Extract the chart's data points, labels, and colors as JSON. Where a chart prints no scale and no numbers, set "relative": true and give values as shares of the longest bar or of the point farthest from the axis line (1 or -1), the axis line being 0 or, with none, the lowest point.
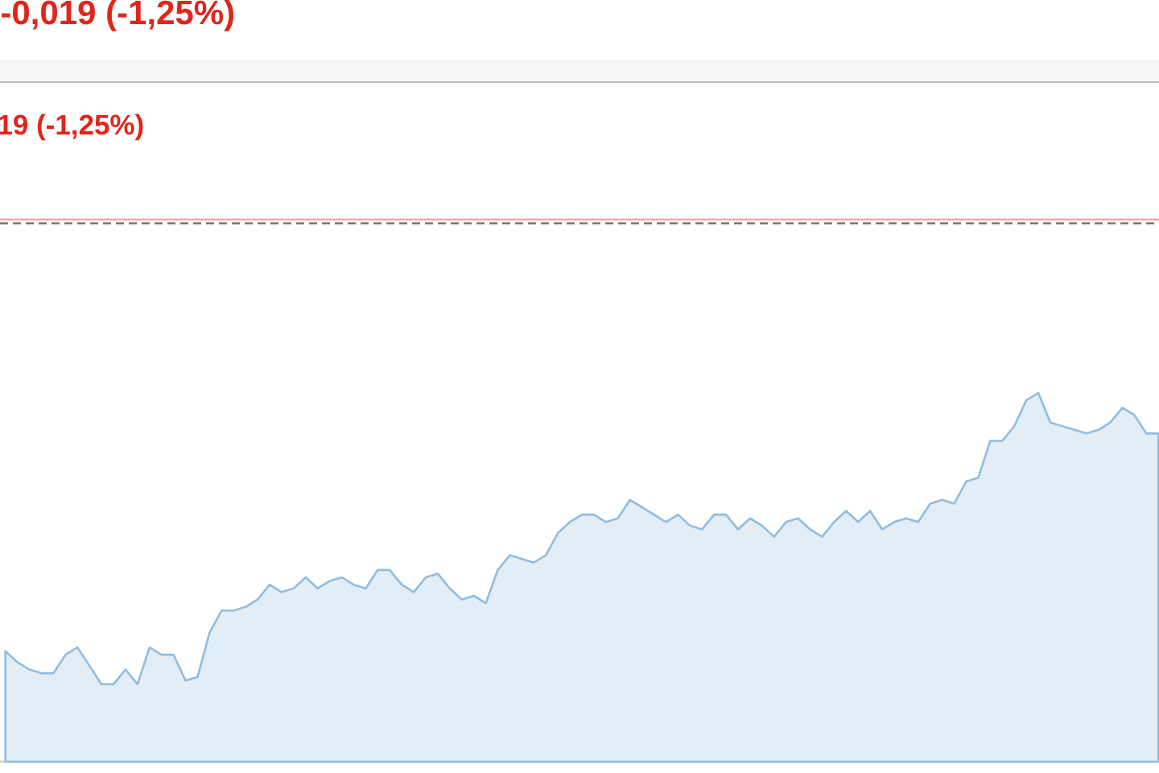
{
  "chart_data": {
    "type": "area",
    "relative": true,
    "annotations": [
      "-0,019 (-1,25%)",
      "19 (-1,25%)"
    ],
    "categories": [
      null,
      null,
      null,
      null,
      null,
      null,
      null,
      null,
      null,
      null,
      null,
      null,
      null,
      null,
      null,
      null,
      null,
      null,
      null,
      null,
      null,
      null,
      null,
      null,
      null,
      null,
      null,
      null,
      null,
      null,
      null,
      null,
      null,
      null,
      null,
      null,
      null,
      null,
      null,
      null,
      null,
      null,
      null,
      null,
      null,
      null,
      null,
      null,
      null,
      null,
      null,
      null,
      null,
      null,
      null,
      null,
      null,
      null,
      null,
      null,
      null,
      null,
      null,
      null,
      null,
      null,
      null,
      null,
      null,
      null,
      null,
      null,
      null,
      null,
      null,
      null,
      null,
      null,
      null,
      null,
      null,
      null,
      null,
      null,
      null,
      null,
      null,
      null,
      null,
      null,
      null,
      null,
      null,
      null,
      null,
      null,
      null
    ],
    "color": "#e2edf6",
    "values": [
      0.3,
      0.27,
      0.25,
      0.24,
      0.24,
      0.29,
      0.31,
      0.26,
      0.21,
      0.21,
      0.25,
      0.21,
      0.31,
      0.29,
      0.29,
      0.22,
      0.23,
      0.35,
      0.41,
      0.41,
      0.42,
      0.44,
      0.48,
      0.46,
      0.47,
      0.5,
      0.47,
      0.49,
      0.5,
      0.48,
      0.47,
      0.52,
      0.52,
      0.48,
      0.46,
      0.5,
      0.51,
      0.47,
      0.44,
      0.45,
      0.43,
      0.52,
      0.56,
      0.55,
      0.54,
      0.56,
      0.62,
      0.65,
      0.67,
      0.67,
      0.65,
      0.66,
      0.71,
      0.69,
      0.67,
      0.65,
      0.67,
      0.64,
      0.63,
      0.67,
      0.67,
      0.63,
      0.66,
      0.64,
      0.61,
      0.65,
      0.66,
      0.63,
      0.61,
      0.65,
      0.68,
      0.65,
      0.68,
      0.63,
      0.65,
      0.66,
      0.65,
      0.7,
      0.71,
      0.7,
      0.76,
      0.77,
      0.87,
      0.87,
      0.91,
      0.98,
      1.0,
      0.92,
      0.91,
      0.9,
      0.89,
      0.9,
      0.92,
      0.96,
      0.94,
      0.89,
      0.89
    ],
    "ref_lines": [
      {
        "axis": "y",
        "value": 1.47,
        "color": "#f4a3a3"
      },
      {
        "axis": "y",
        "value": 1.46,
        "color": "#6e6e6e",
        "line_style": "dashed"
      }
    ]
  }
}
